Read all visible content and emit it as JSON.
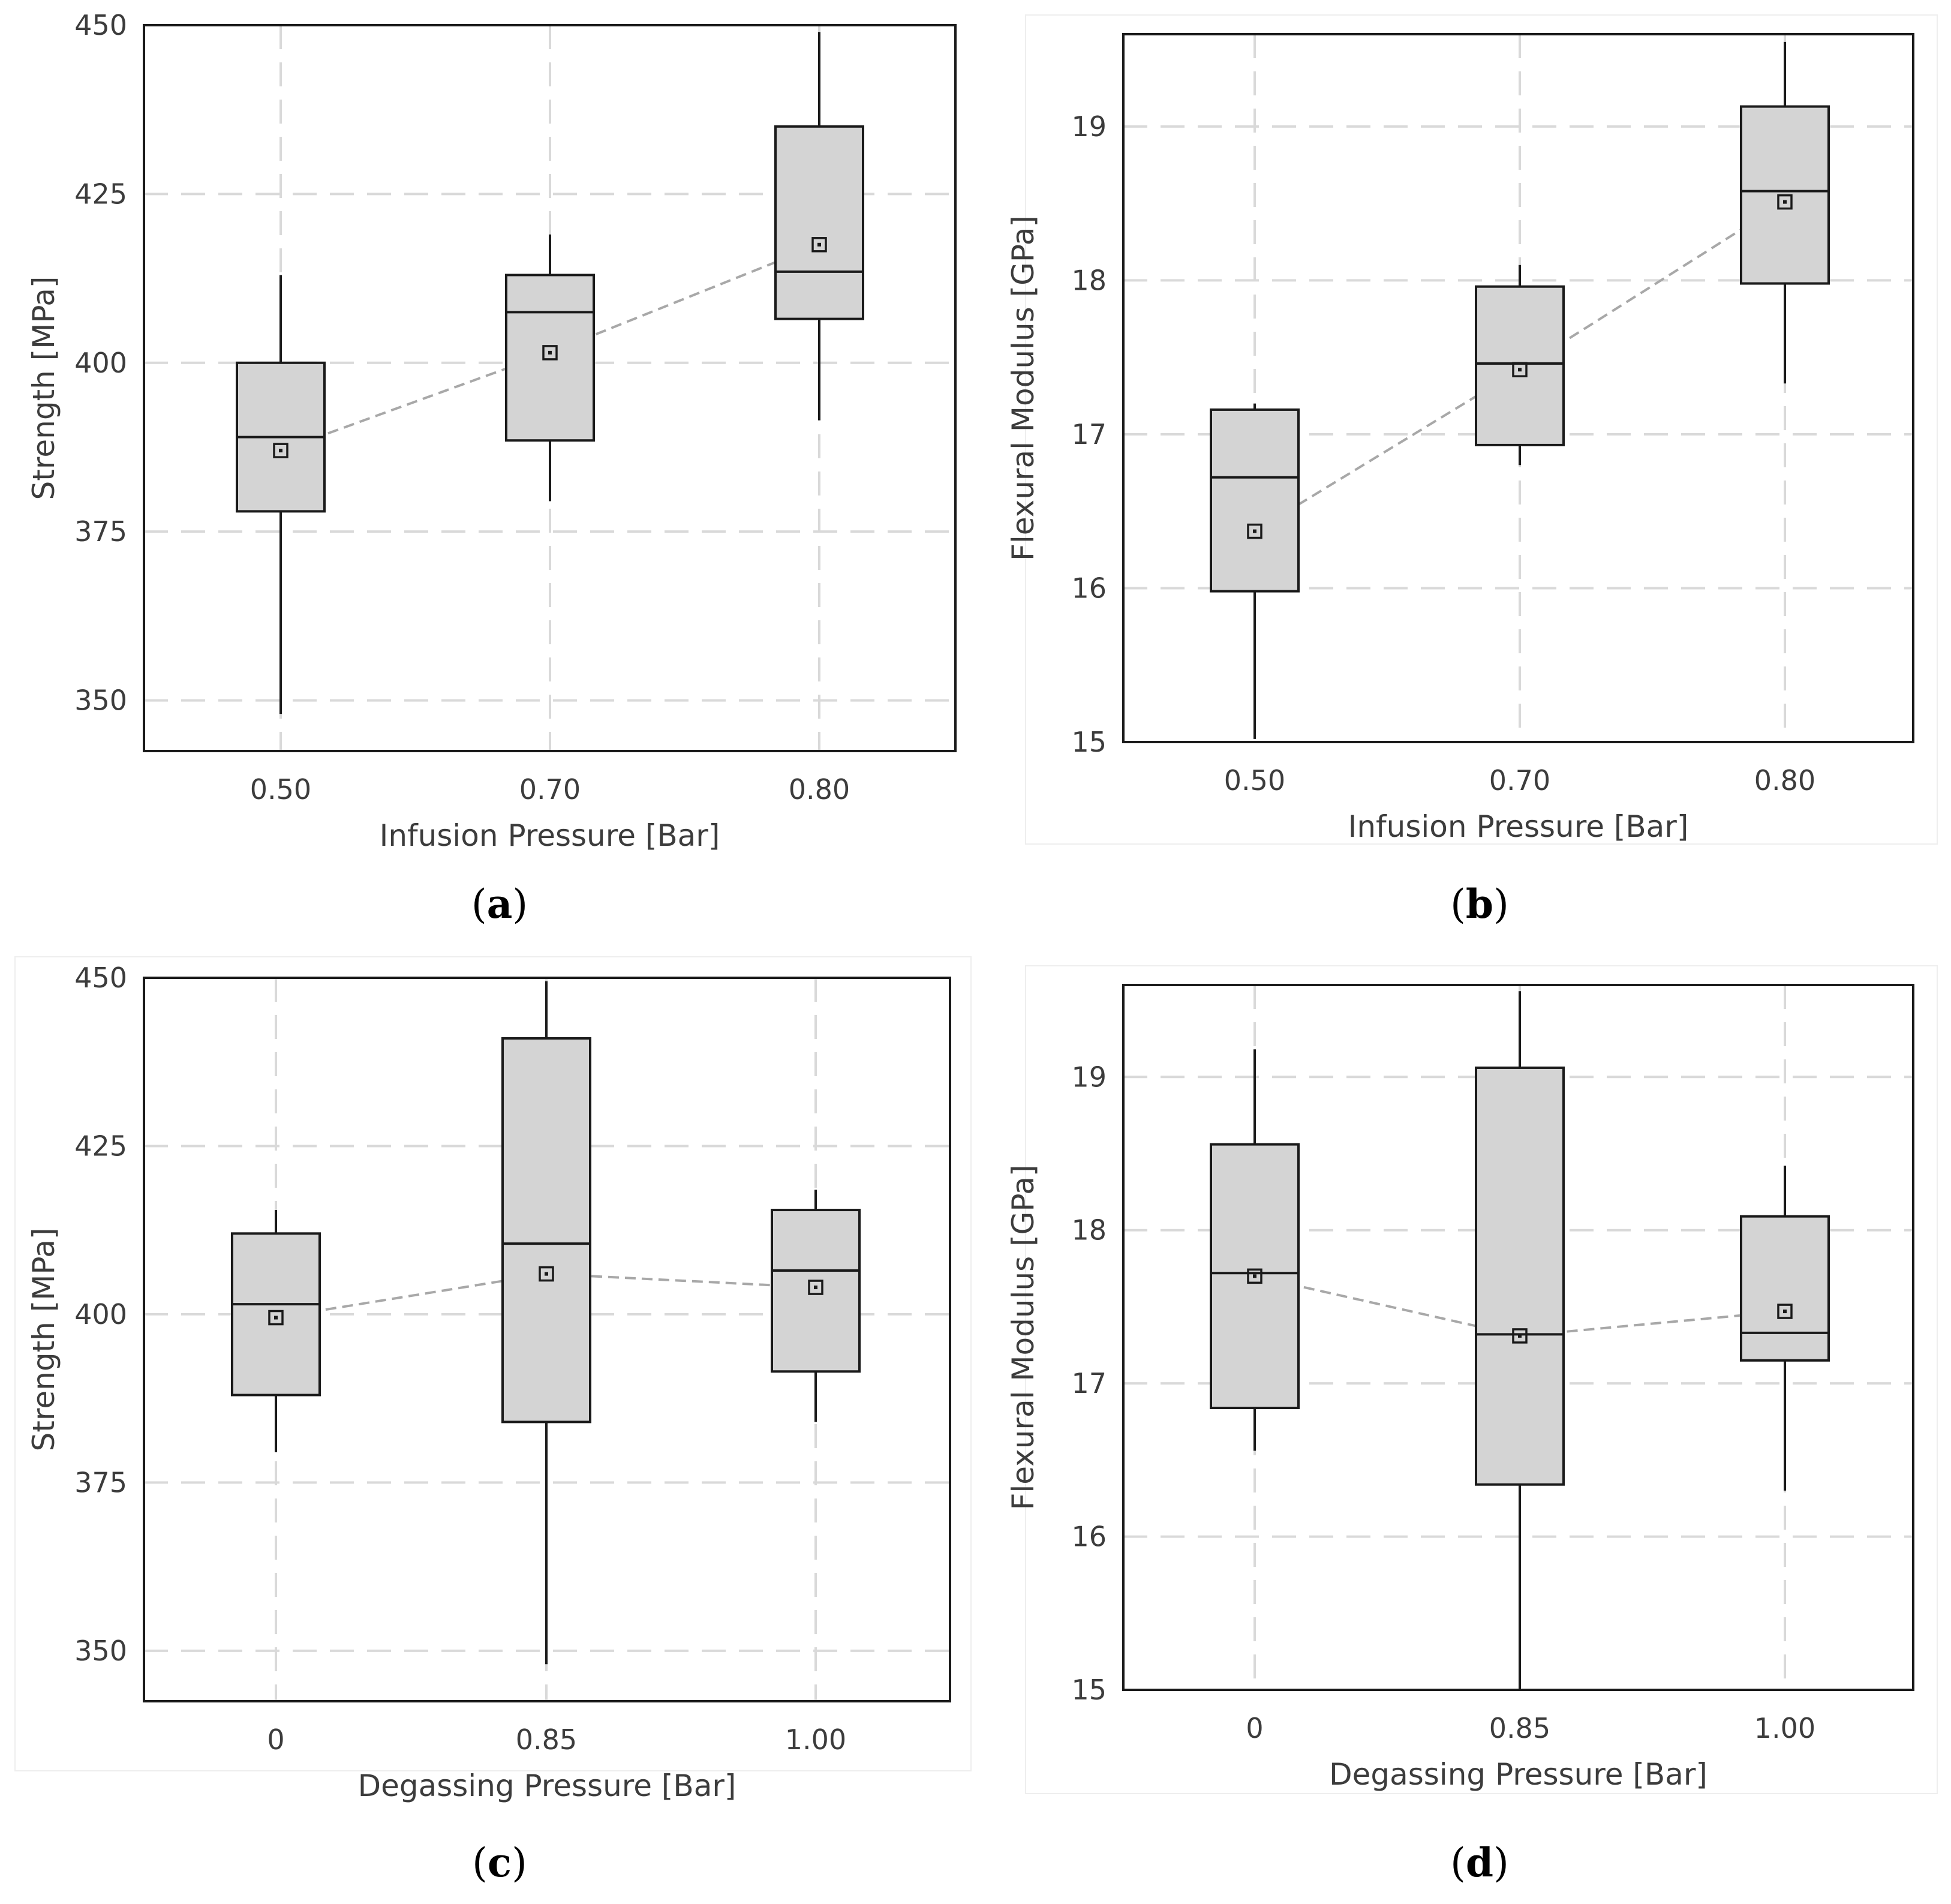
{
  "colors": {
    "box_fill": "#d4d4d4",
    "box_stroke": "#1a1a1a",
    "grid": "#d9d9d9",
    "mean_line": "#a8a8a8",
    "frame": "#1a1a1a",
    "text": "#3c3c3c"
  },
  "chart_data": [
    {
      "type": "box",
      "panel": "a",
      "caption": "(a)",
      "caption_letter": "a",
      "xlabel": "Infusion Pressure [Bar]",
      "ylabel": "Strength [MPa]",
      "ylim": [
        342.5,
        450
      ],
      "yticks": [
        350,
        375,
        400,
        425,
        450
      ],
      "categories": [
        "0.50",
        "0.70",
        "0.80"
      ],
      "boxes": [
        {
          "category": "0.50",
          "whisker_low": 348,
          "q1": 378,
          "median": 389,
          "q3": 400,
          "whisker_high": 413,
          "mean": 387
        },
        {
          "category": "0.70",
          "whisker_low": 379.5,
          "q1": 388.5,
          "median": 407.5,
          "q3": 413,
          "whisker_high": 419,
          "mean": 401.5
        },
        {
          "category": "0.80",
          "whisker_low": 391.5,
          "q1": 406.5,
          "median": 413.5,
          "q3": 435,
          "whisker_high": 449,
          "mean": 417.5
        }
      ]
    },
    {
      "type": "box",
      "panel": "b",
      "caption": "(b)",
      "caption_letter": "b",
      "xlabel": "Infusion Pressure [Bar]",
      "ylabel": "Flexural Modulus [GPa]",
      "ylim": [
        15,
        19.6
      ],
      "yticks": [
        15,
        16,
        17,
        18,
        19
      ],
      "categories": [
        "0.50",
        "0.70",
        "0.80"
      ],
      "boxes": [
        {
          "category": "0.50",
          "whisker_low": 15.02,
          "q1": 15.98,
          "median": 16.72,
          "q3": 17.16,
          "whisker_high": 17.2,
          "mean": 16.37
        },
        {
          "category": "0.70",
          "whisker_low": 16.8,
          "q1": 16.93,
          "median": 17.46,
          "q3": 17.96,
          "whisker_high": 18.1,
          "mean": 17.42
        },
        {
          "category": "0.80",
          "whisker_low": 17.33,
          "q1": 17.98,
          "median": 18.58,
          "q3": 19.13,
          "whisker_high": 19.55,
          "mean": 18.51
        }
      ]
    },
    {
      "type": "box",
      "panel": "c",
      "caption": "(c)",
      "caption_letter": "c",
      "xlabel": "Degassing Pressure [Bar]",
      "ylabel": "Strength [MPa]",
      "ylim": [
        342.5,
        450
      ],
      "yticks": [
        350,
        375,
        400,
        425,
        450
      ],
      "categories": [
        "0",
        "0.85",
        "1.00"
      ],
      "boxes": [
        {
          "category": "0",
          "whisker_low": 379.5,
          "q1": 388,
          "median": 401.5,
          "q3": 412,
          "whisker_high": 415.5,
          "mean": 399.5
        },
        {
          "category": "0.85",
          "whisker_low": 348,
          "q1": 384,
          "median": 410.5,
          "q3": 441,
          "whisker_high": 449.5,
          "mean": 406
        },
        {
          "category": "1.00",
          "whisker_low": 384,
          "q1": 391.5,
          "median": 406.5,
          "q3": 415.5,
          "whisker_high": 418.5,
          "mean": 404
        }
      ]
    },
    {
      "type": "box",
      "panel": "d",
      "caption": "(d)",
      "caption_letter": "d",
      "xlabel": "Degassing Pressure [Bar]",
      "ylabel": "Flexural Modulus [GPa]",
      "ylim": [
        15,
        19.6
      ],
      "yticks": [
        15,
        16,
        17,
        18,
        19
      ],
      "categories": [
        "0",
        "0.85",
        "1.00"
      ],
      "boxes": [
        {
          "category": "0",
          "whisker_low": 16.56,
          "q1": 16.84,
          "median": 17.72,
          "q3": 18.56,
          "whisker_high": 19.18,
          "mean": 17.7
        },
        {
          "category": "0.85",
          "whisker_low": 15.0,
          "q1": 16.34,
          "median": 17.32,
          "q3": 19.06,
          "whisker_high": 19.56,
          "mean": 17.31
        },
        {
          "category": "1.00",
          "whisker_low": 16.3,
          "q1": 17.15,
          "median": 17.33,
          "q3": 18.09,
          "whisker_high": 18.42,
          "mean": 17.47
        }
      ]
    }
  ]
}
